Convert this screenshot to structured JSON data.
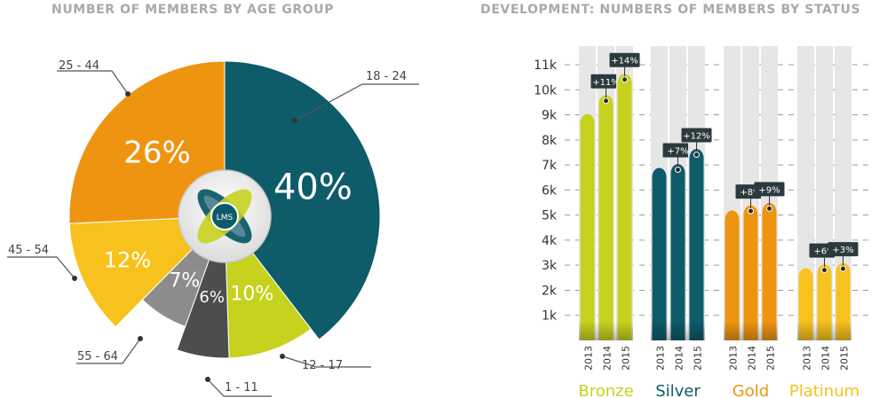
{
  "chart_data": [
    {
      "type": "pie",
      "title": "NUMBER OF MEMBERS BY AGE GROUP",
      "logo_text": "LMS",
      "slices": [
        {
          "label": "18 - 24",
          "value": 40,
          "display": "40%",
          "color": "#0e5b6a"
        },
        {
          "label": "12 - 17",
          "value": 10,
          "display": "10%",
          "color": "#c6d21e"
        },
        {
          "label": "1 - 11",
          "value": 6,
          "display": "6%",
          "color": "#4d4d4d"
        },
        {
          "label": "55 - 64",
          "value": 7,
          "display": "7%",
          "color": "#8c8c8c"
        },
        {
          "label": "45 - 54",
          "value": 12,
          "display": "12%",
          "color": "#f7c21d"
        },
        {
          "label": "25 - 44",
          "value": 26,
          "display": "26%",
          "color": "#ef9411"
        }
      ]
    },
    {
      "type": "bar",
      "title": "DEVELOPMENT: NUMBERS OF MEMBERS BY STATUS",
      "ylim": [
        0,
        11000
      ],
      "y_ticks": [
        "1k",
        "2k",
        "3k",
        "4k",
        "5k",
        "6k",
        "7k",
        "8k",
        "9k",
        "10k",
        "11k"
      ],
      "groups": [
        {
          "name": "Bronze",
          "color": "#c6d21e",
          "bars": [
            {
              "year": "2013",
              "value": 8950
            },
            {
              "year": "2014",
              "value": 9700,
              "change": "+11%"
            },
            {
              "year": "2015",
              "value": 10550,
              "change": "+14%"
            }
          ]
        },
        {
          "name": "Silver",
          "color": "#0e5b6a",
          "bars": [
            {
              "year": "2013",
              "value": 6800
            },
            {
              "year": "2014",
              "value": 6950,
              "change": "+7%"
            },
            {
              "year": "2015",
              "value": 7550,
              "change": "+12%"
            }
          ]
        },
        {
          "name": "Gold",
          "color": "#ef9411",
          "bars": [
            {
              "year": "2013",
              "value": 5100
            },
            {
              "year": "2014",
              "value": 5300,
              "change": "+8%"
            },
            {
              "year": "2015",
              "value": 5400,
              "change": "+9%"
            }
          ]
        },
        {
          "name": "Platinum",
          "color": "#f7c21d",
          "bars": [
            {
              "year": "2013",
              "value": 2800
            },
            {
              "year": "2014",
              "value": 2950,
              "change": "+6%"
            },
            {
              "year": "2015",
              "value": 3000,
              "change": "+3%"
            }
          ]
        }
      ]
    }
  ]
}
